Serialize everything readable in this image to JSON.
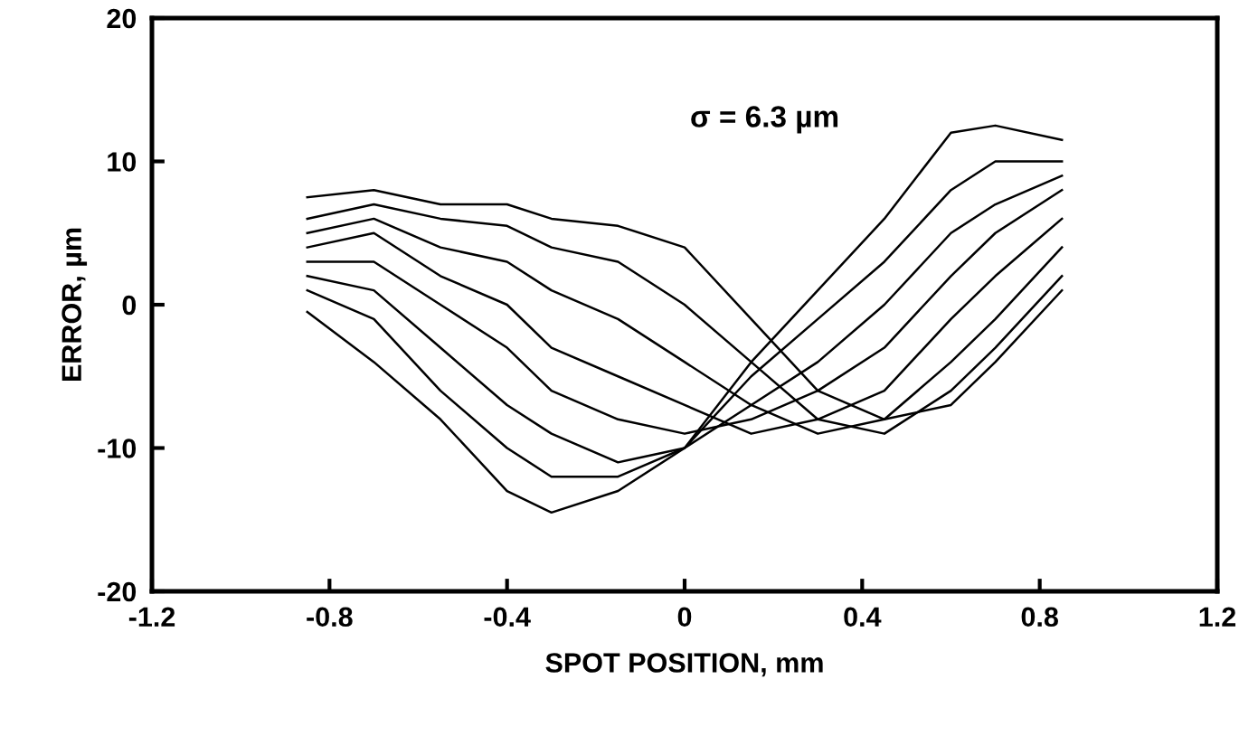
{
  "chart_data": {
    "type": "line",
    "xlabel": "SPOT POSITION, mm",
    "ylabel": "ERROR, µm",
    "annotations": [
      "σ = 6.3 µm"
    ],
    "x": [
      -0.85,
      -0.7,
      -0.55,
      -0.4,
      -0.3,
      -0.15,
      0,
      0.15,
      0.3,
      0.45,
      0.6,
      0.7,
      0.85
    ],
    "series": [
      {
        "color": "#000000",
        "values": [
          7.5,
          8,
          7,
          7,
          6,
          5.5,
          4,
          -1,
          -6,
          -8,
          -7,
          -4,
          1
        ]
      },
      {
        "color": "#000000",
        "values": [
          6,
          7,
          6,
          5.5,
          4,
          3,
          0,
          -4,
          -8,
          -9,
          -6,
          -3,
          2
        ]
      },
      {
        "color": "#000000",
        "values": [
          5,
          6,
          4,
          3,
          1,
          -1,
          -4,
          -7,
          -9,
          -8,
          -4,
          -1,
          4
        ]
      },
      {
        "color": "#000000",
        "values": [
          4,
          5,
          2,
          0,
          -3,
          -5,
          -7,
          -9,
          -8,
          -6,
          -1,
          2,
          6
        ]
      },
      {
        "color": "#000000",
        "values": [
          3,
          3,
          0,
          -3,
          -6,
          -8,
          -9,
          -8,
          -6,
          -3,
          2,
          5,
          8
        ]
      },
      {
        "color": "#000000",
        "values": [
          2,
          1,
          -3,
          -7,
          -9,
          -11,
          -10,
          -7,
          -4,
          0,
          5,
          7,
          9
        ]
      },
      {
        "color": "#000000",
        "values": [
          1,
          -1,
          -6,
          -10,
          -12,
          -12,
          -10,
          -5,
          -1,
          3,
          8,
          10,
          10
        ]
      },
      {
        "color": "#000000",
        "values": [
          -0.5,
          -4,
          -8,
          -13,
          -14.5,
          -13,
          -10,
          -4,
          1,
          6,
          12,
          12.5,
          11.5
        ]
      }
    ],
    "xlim": [
      -1.2,
      1.2
    ],
    "xticks": [
      -1.2,
      -0.8,
      -0.4,
      0,
      0.4,
      0.8,
      1.2
    ],
    "ylim": [
      -20,
      20
    ],
    "yticks": [
      -20,
      -10,
      0,
      10,
      20
    ],
    "grid": false,
    "legend": false,
    "marker": "none",
    "line_style": "solid"
  }
}
